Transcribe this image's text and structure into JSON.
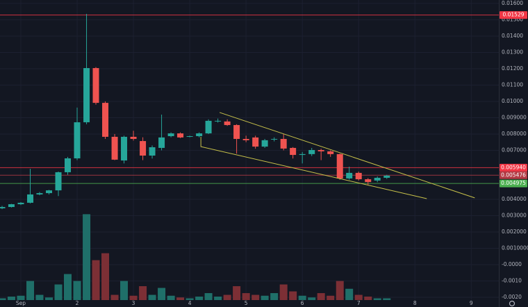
{
  "chart_data": {
    "type": "candlestick",
    "xlim": [
      0.63,
      9.49
    ],
    "xticks": [
      {
        "value": 1,
        "label": "Sep"
      },
      2,
      3,
      4,
      5,
      6,
      7,
      8,
      9
    ],
    "ylim": [
      -0.00217,
      0.01621
    ],
    "yticks": [
      {
        "value": 0.016,
        "label": "0.01600"
      },
      {
        "value": 0.015,
        "label": "0.01500"
      },
      {
        "value": 0.014,
        "label": "0.01400"
      },
      {
        "value": 0.013,
        "label": "0.01300"
      },
      {
        "value": 0.012,
        "label": "0.01200"
      },
      {
        "value": 0.011,
        "label": "0.01100"
      },
      {
        "value": 0.01,
        "label": "0.01000"
      },
      {
        "value": 0.009,
        "label": "0.009000"
      },
      {
        "value": 0.008,
        "label": "0.008000"
      },
      {
        "value": 0.007,
        "label": "0.007000"
      },
      {
        "value": 0.004,
        "label": "0.004000"
      },
      {
        "value": 0.003,
        "label": "0.003000"
      },
      {
        "value": 0.002,
        "label": "0.002000"
      },
      {
        "value": 0.001,
        "label": "0.0010000"
      },
      {
        "value": 0,
        "label": "-0.0000"
      },
      {
        "value": -0.001,
        "label": "-0.0010"
      },
      {
        "value": -0.002,
        "label": "-0.0020"
      }
    ],
    "y2lim": [
      0,
      346
    ],
    "grid": true,
    "up_color": "#26a69a",
    "down_color": "#ef5350",
    "volume_colors": [
      "#1f6f69",
      "#7c2f35"
    ],
    "candles": {
      "x": [
        0.667,
        0.833,
        1,
        1.167,
        1.333,
        1.5,
        1.667,
        1.833,
        2,
        2.167,
        2.333,
        2.5,
        2.667,
        2.833,
        3,
        3.167,
        3.333,
        3.5,
        3.667,
        3.833,
        4,
        4.167,
        4.333,
        4.5,
        4.667,
        4.833,
        5,
        5.167,
        5.333,
        5.5,
        5.667,
        5.833,
        6,
        6.167,
        6.333,
        6.5,
        6.667,
        6.833,
        7,
        7.167,
        7.333,
        7.5
      ],
      "open": [
        0.00345,
        0.00353,
        0.0037,
        0.00379,
        0.0043,
        0.00438,
        0.00455,
        0.00566,
        0.00651,
        0.00872,
        0.01204,
        0.00991,
        0.00783,
        0.00638,
        0.00783,
        0.00757,
        0.00668,
        0.00715,
        0.00787,
        0.00804,
        0.00785,
        0.00787,
        0.00804,
        0.00877,
        0.00877,
        0.00855,
        0.0077,
        0.00779,
        0.00723,
        0.00766,
        0.0077,
        0.00715,
        0.00672,
        0.00677,
        0.00702,
        0.00694,
        0.00677,
        0.00528,
        0.00562,
        0.00523,
        0.00515,
        0.00532
      ],
      "high": [
        0.0036,
        0.00372,
        0.00383,
        0.00587,
        0.00445,
        0.00458,
        0.0057,
        0.0066,
        0.00962,
        0.01536,
        0.0121,
        0.01,
        0.008,
        0.0079,
        0.0082,
        0.0078,
        0.0073,
        0.00919,
        0.0081,
        0.0081,
        0.0079,
        0.0081,
        0.0089,
        0.00895,
        0.0089,
        0.0086,
        0.0079,
        0.0079,
        0.0077,
        0.0078,
        0.008,
        0.0072,
        0.0069,
        0.00715,
        0.0071,
        0.007,
        0.0068,
        0.006,
        0.0057,
        0.0053,
        0.0054,
        0.0055
      ],
      "low": [
        0.0034,
        0.0035,
        0.00365,
        0.00375,
        0.00425,
        0.0043,
        0.0042,
        0.0055,
        0.0064,
        0.0086,
        0.0098,
        0.0077,
        0.0064,
        0.0062,
        0.0076,
        0.0064,
        0.0065,
        0.007,
        0.0078,
        0.00775,
        0.0078,
        0.0078,
        0.008,
        0.0087,
        0.0085,
        0.0068,
        0.0075,
        0.0071,
        0.00715,
        0.00755,
        0.007,
        0.0065,
        0.0062,
        0.00665,
        0.0064,
        0.0066,
        0.0052,
        0.0052,
        0.00515,
        0.0049,
        0.00505,
        0.00525
      ],
      "close": [
        0.00353,
        0.0037,
        0.00379,
        0.0043,
        0.00438,
        0.00455,
        0.00566,
        0.00651,
        0.00872,
        0.01204,
        0.00991,
        0.00783,
        0.00643,
        0.00783,
        0.0077,
        0.00668,
        0.00719,
        0.00779,
        0.00804,
        0.00779,
        0.00787,
        0.00804,
        0.00881,
        0.00881,
        0.00855,
        0.0077,
        0.00762,
        0.00723,
        0.00762,
        0.0077,
        0.00711,
        0.00672,
        0.00677,
        0.00702,
        0.00694,
        0.00677,
        0.00528,
        0.00562,
        0.00523,
        0.00506,
        0.00532,
        0.00545
      ]
    },
    "volume": {
      "axis": "y2",
      "values": [
        2,
        4,
        5,
        22,
        6,
        3,
        18,
        30,
        22,
        99,
        46,
        54,
        6,
        22,
        5,
        16,
        6,
        14,
        5,
        3,
        2,
        4,
        8,
        4,
        6,
        16,
        8,
        6,
        5,
        8,
        18,
        10,
        5,
        3,
        8,
        5,
        22,
        13,
        6,
        4,
        2,
        2
      ]
    },
    "levels": [
      {
        "value": 0.01529,
        "label": "0.01529",
        "color": "#f23645"
      },
      {
        "value": 0.00594,
        "label": "0.005940",
        "color": "#f23645"
      },
      {
        "value": 0.005476,
        "label": "0.005476",
        "color": "#b23a44"
      },
      {
        "value": 0.004975,
        "label": "0.004975",
        "color": "#4caf50"
      }
    ],
    "trendlines": {
      "color": "#c8c24a",
      "lines": [
        {
          "x": [
            4.531,
            9.062
          ],
          "y": [
            0.00932,
            0.00409
          ]
        },
        {
          "x": [
            4.198,
            4.198,
            8.21
          ],
          "y": [
            0.00783,
            0.00723,
            0.00404
          ]
        }
      ]
    }
  }
}
